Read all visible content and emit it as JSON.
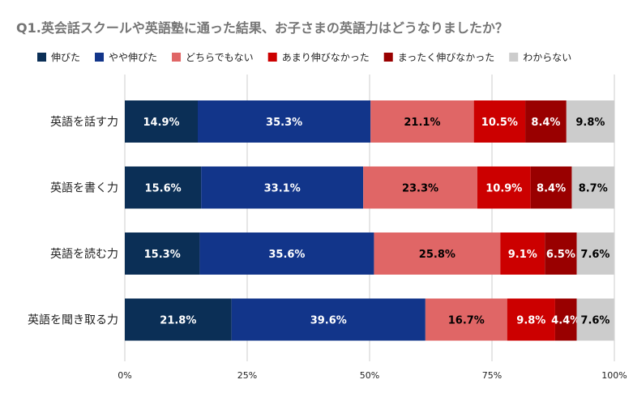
{
  "chart_data": {
    "type": "bar",
    "orientation": "horizontal",
    "stacked": "percent",
    "title": "Q1.英会話スクールや英語塾に通った結果、お子さまの英語力はどうなりましたか？",
    "categories": [
      "英語を話す力",
      "英語を書く力",
      "英語を読む力",
      "英語を聞き取る力"
    ],
    "series": [
      {
        "name": "伸びた",
        "values": [
          14.9,
          15.6,
          15.3,
          21.8
        ],
        "labels": [
          "14.9%",
          "15.6%",
          "15.3%",
          "21.8%"
        ],
        "color": "#0b2f56",
        "label_color": "#ffffff"
      },
      {
        "name": "やや伸びた",
        "values": [
          35.3,
          33.1,
          35.6,
          39.6
        ],
        "labels": [
          "35.3%",
          "33.1%",
          "35.6%",
          "39.6%"
        ],
        "color": "#12358a",
        "label_color": "#ffffff"
      },
      {
        "name": "どちらでもない",
        "values": [
          21.1,
          23.3,
          25.8,
          16.7
        ],
        "labels": [
          "21.1%",
          "23.3%",
          "25.8%",
          "16.7%"
        ],
        "color": "#e06666",
        "label_color": "#000000"
      },
      {
        "name": "あまり伸びなかった",
        "values": [
          10.5,
          10.9,
          9.1,
          9.8
        ],
        "labels": [
          "10.5%",
          "10.9%",
          "9.1%",
          "9.8%"
        ],
        "color": "#cc0000",
        "label_color": "#ffffff"
      },
      {
        "name": "まったく伸びなかった",
        "values": [
          8.4,
          8.4,
          6.5,
          4.4
        ],
        "labels": [
          "8.4%",
          "8.4%",
          "6.5%",
          "4.4%"
        ],
        "color": "#990000",
        "label_color": "#ffffff"
      },
      {
        "name": "わからない",
        "values": [
          9.8,
          8.7,
          7.6,
          7.6
        ],
        "labels": [
          "9.8%",
          "8.7%",
          "7.6%",
          "7.6%"
        ],
        "color": "#cccccc",
        "label_color": "#000000"
      }
    ],
    "x_ticks": [
      "0%",
      "25%",
      "50%",
      "75%",
      "100%"
    ],
    "xlim": [
      0,
      100
    ],
    "legend_position": "top",
    "grid": "vertical"
  }
}
